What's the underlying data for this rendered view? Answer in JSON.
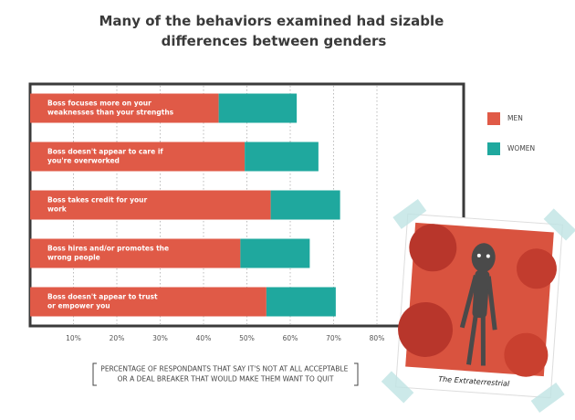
{
  "chart_data": {
    "type": "stacked-barh",
    "title": "Many of the behaviors examined had sizable differences between genders",
    "categories": [
      "Boss focuses more on your weaknesses than your strengths",
      "Boss doesn't appear to care if you're overworked",
      "Boss takes credit for your work",
      "Boss hires and/or promotes the wrong people",
      "Boss doesn't appear to trust or empower you"
    ],
    "series": [
      {
        "name": "MEN",
        "color": "#e05a47",
        "values": [
          43.5,
          49.5,
          55.5,
          48.5,
          54.5
        ]
      },
      {
        "name": "WOMEN",
        "color": "#1fa89e",
        "values": [
          18,
          17,
          16,
          16,
          16
        ]
      }
    ],
    "xlim": [
      0,
      100
    ],
    "xticks": [
      {
        "value": 10,
        "label": "10%"
      },
      {
        "value": 20,
        "label": "20%"
      },
      {
        "value": 30,
        "label": "30%"
      },
      {
        "value": 40,
        "label": "40%"
      },
      {
        "value": 50,
        "label": "50%"
      },
      {
        "value": 60,
        "label": "60%"
      },
      {
        "value": 70,
        "label": "70%"
      },
      {
        "value": 80,
        "label": "80%"
      }
    ],
    "grid": true,
    "x_label": "PERCENTAGE OF RESPONDANTS THAT SAY IT'S NOT AT ALL ACCEPTABLE OR A DEAL BREAKER THAT WOULD MAKE THEM WANT TO QUIT"
  },
  "photo": {
    "caption": "The Extraterrestrial"
  }
}
